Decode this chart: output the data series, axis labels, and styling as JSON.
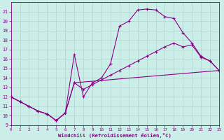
{
  "xlabel": "Windchill (Refroidissement éolien,°C)",
  "bg_color": "#cceee8",
  "line_color": "#880088",
  "xlim": [
    0,
    23
  ],
  "ylim": [
    9,
    22
  ],
  "xticks": [
    0,
    1,
    2,
    3,
    4,
    5,
    6,
    7,
    8,
    9,
    10,
    11,
    12,
    13,
    14,
    15,
    16,
    17,
    18,
    19,
    20,
    21,
    22,
    23
  ],
  "yticks": [
    9,
    10,
    11,
    12,
    13,
    14,
    15,
    16,
    17,
    18,
    19,
    20,
    21
  ],
  "line1_x": [
    0,
    1,
    2,
    3,
    4,
    5,
    6,
    7,
    8,
    9,
    10,
    11,
    12,
    13,
    14,
    15,
    16,
    17,
    18,
    19,
    20,
    21,
    22,
    23
  ],
  "line1_y": [
    12,
    11.5,
    11.0,
    10.5,
    10.2,
    9.5,
    10.3,
    16.5,
    12.0,
    13.5,
    14.0,
    15.5,
    19.5,
    20.0,
    21.2,
    21.3,
    21.2,
    20.5,
    20.3,
    18.8,
    17.7,
    16.3,
    15.8,
    14.8
  ],
  "line2_x": [
    0,
    1,
    2,
    3,
    4,
    5,
    6,
    7,
    8,
    9,
    10,
    11,
    12,
    13,
    14,
    15,
    16,
    17,
    18,
    19,
    20,
    21,
    22,
    23
  ],
  "line2_y": [
    12,
    11.5,
    11.0,
    10.5,
    10.2,
    9.5,
    10.3,
    13.5,
    12.8,
    13.3,
    13.8,
    14.3,
    14.8,
    15.3,
    15.8,
    16.3,
    16.8,
    17.3,
    17.7,
    17.3,
    17.5,
    16.2,
    15.8,
    14.8
  ],
  "line3_x": [
    0,
    1,
    2,
    3,
    4,
    5,
    6,
    7,
    23
  ],
  "line3_y": [
    12,
    11.5,
    11.0,
    10.5,
    10.2,
    9.5,
    10.3,
    13.5,
    14.8
  ],
  "grid_color": "#aacccc",
  "spine_color": "#880088"
}
